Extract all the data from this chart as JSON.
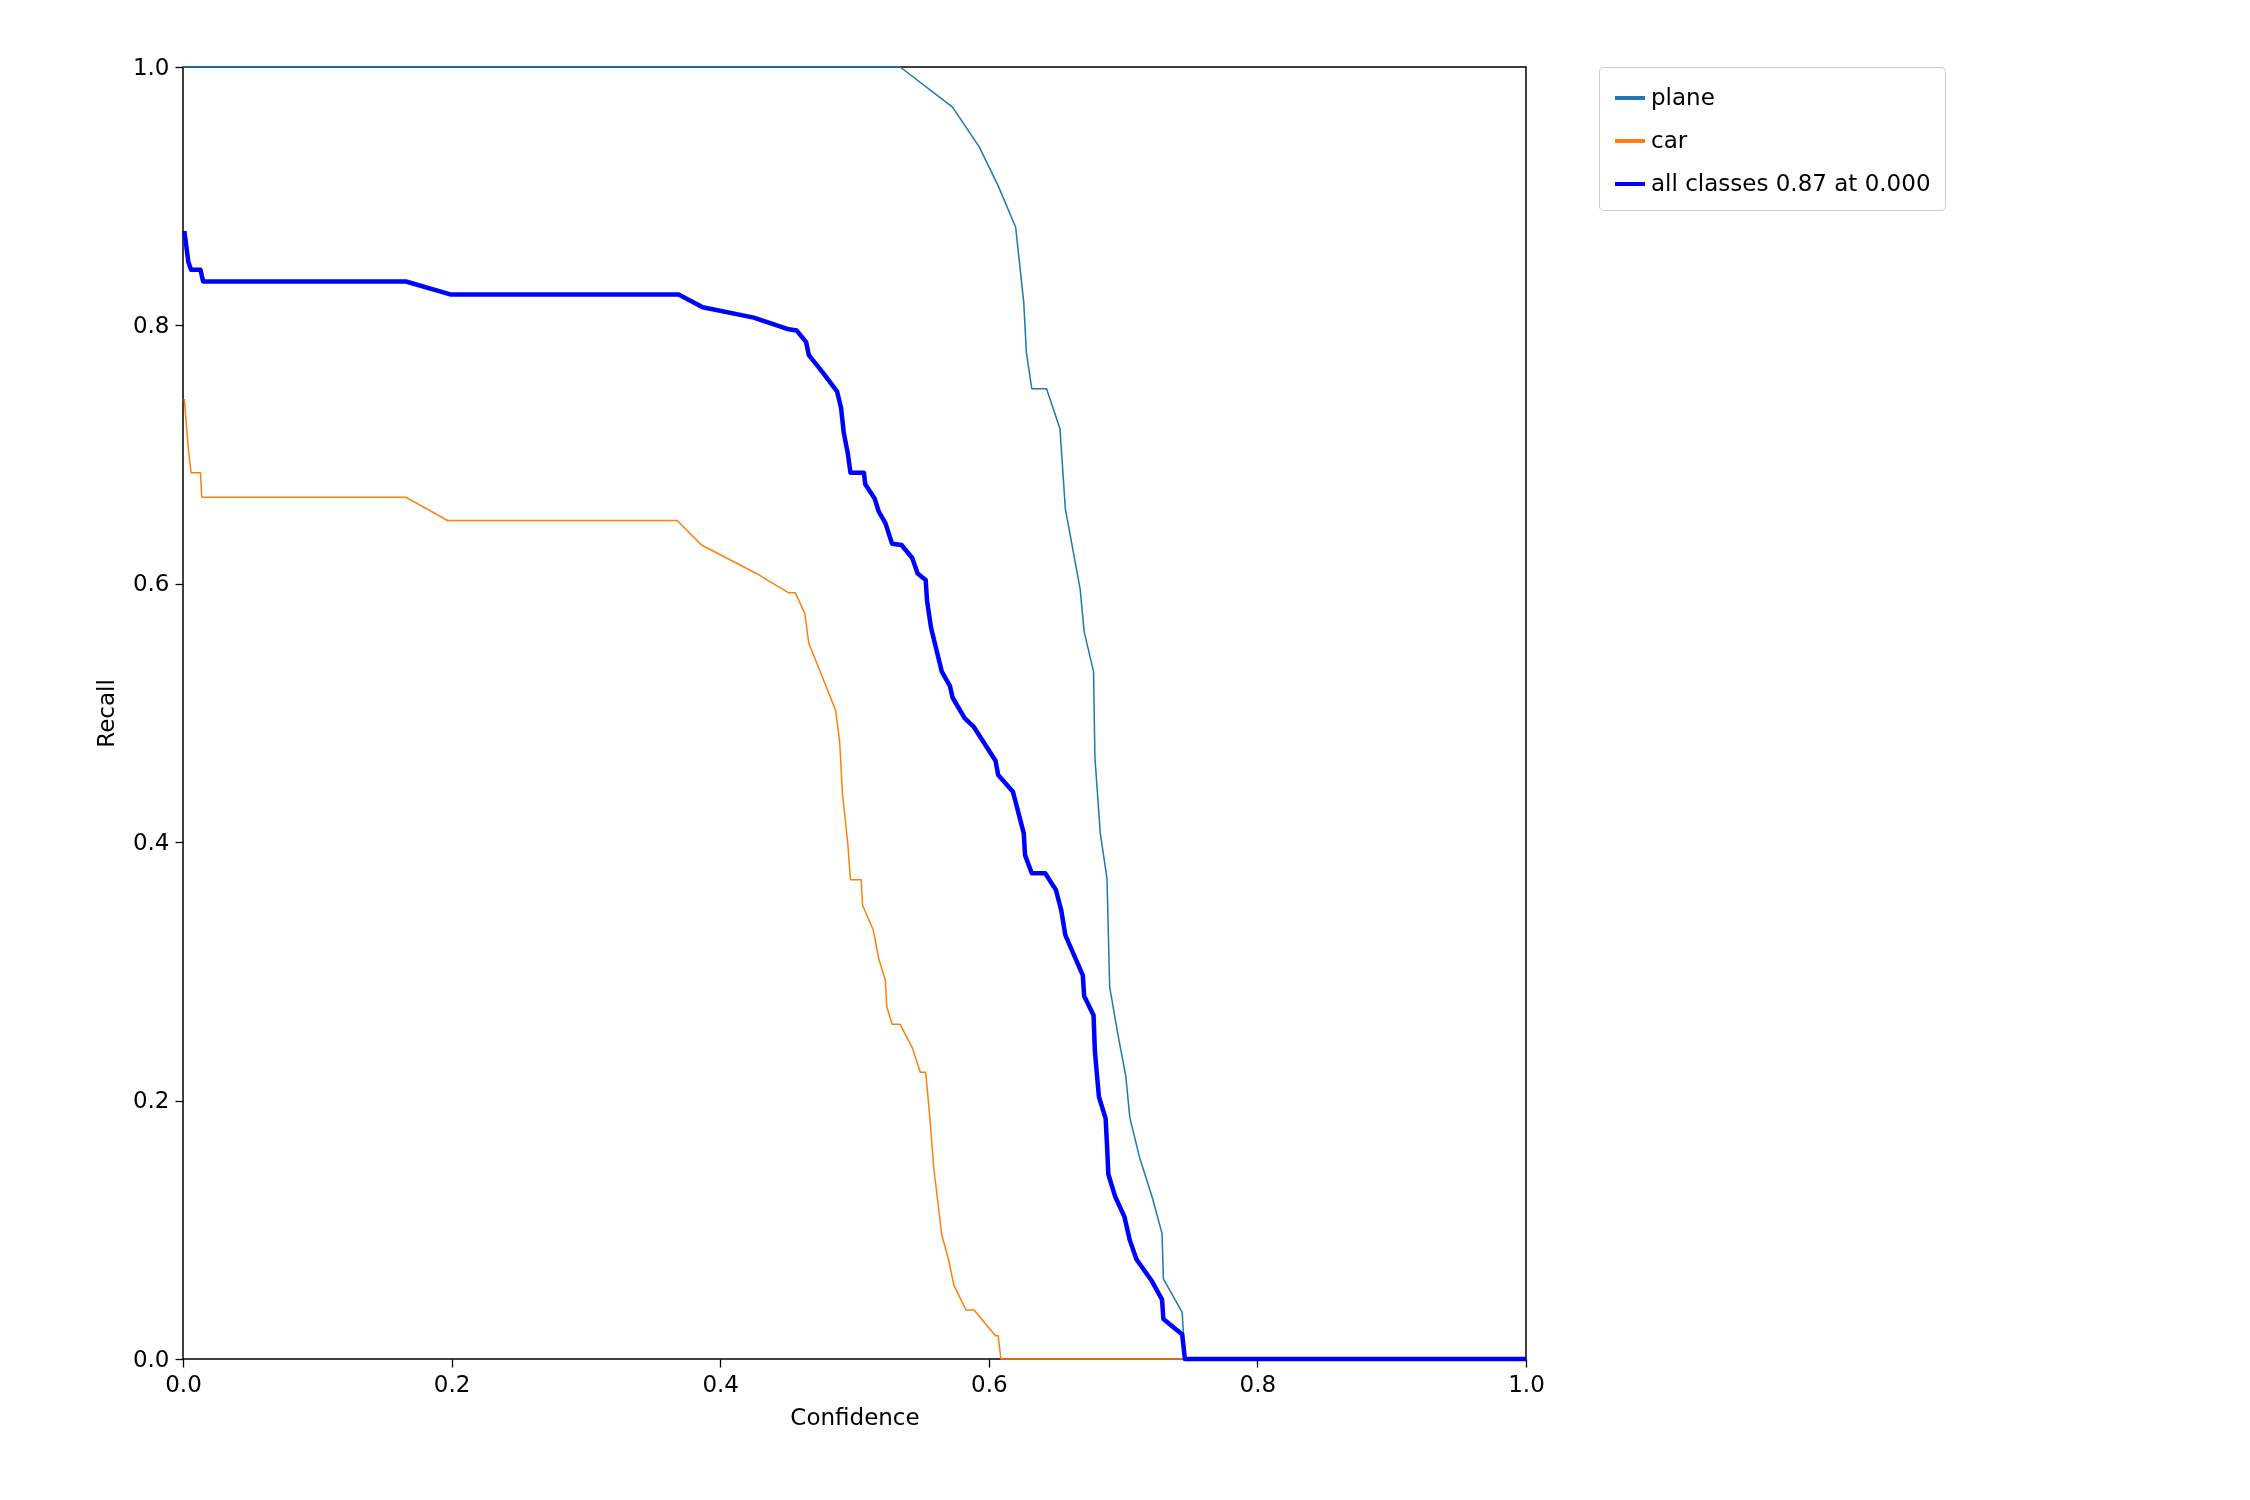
{
  "chart_data": {
    "type": "line",
    "xlabel": "Confidence",
    "ylabel": "Recall",
    "xlim": [
      0,
      1
    ],
    "ylim": [
      0,
      1
    ],
    "xticks": [
      {
        "value": 0,
        "label": "0.0"
      },
      {
        "value": 0.2,
        "label": "0.2"
      },
      {
        "value": 0.4,
        "label": "0.4"
      },
      {
        "value": 0.6,
        "label": "0.6"
      },
      {
        "value": 0.8,
        "label": "0.8"
      },
      {
        "value": 1,
        "label": "1.0"
      }
    ],
    "yticks": [
      {
        "value": 0,
        "label": "0.0"
      },
      {
        "value": 0.2,
        "label": "0.2"
      },
      {
        "value": 0.4,
        "label": "0.4"
      },
      {
        "value": 0.6,
        "label": "0.6"
      },
      {
        "value": 0.8,
        "label": "0.8"
      },
      {
        "value": 1,
        "label": "1.0"
      }
    ],
    "grid": false,
    "legend": "top right",
    "line_style": "solid",
    "marker": "none",
    "series": [
      {
        "name": "plane",
        "color": "#1f77b4",
        "x": [
          0,
          0.534,
          0.573,
          0.593,
          0.607,
          0.62,
          0.626,
          0.628,
          0.632,
          0.643,
          0.653,
          0.657,
          0.668,
          0.671,
          0.678,
          0.679,
          0.683,
          0.688,
          0.69,
          0.696,
          0.702,
          0.705,
          0.712,
          0.722,
          0.729,
          0.73,
          0.744,
          0.746,
          1
        ],
        "values": [
          1,
          1,
          0.969,
          0.938,
          0.908,
          0.876,
          0.818,
          0.779,
          0.751,
          0.751,
          0.72,
          0.658,
          0.596,
          0.563,
          0.532,
          0.466,
          0.407,
          0.372,
          0.288,
          0.252,
          0.219,
          0.187,
          0.157,
          0.124,
          0.097,
          0.062,
          0.036,
          0,
          0
        ]
      },
      {
        "name": "car",
        "color": "#ff7f0e",
        "x": [
          0.001,
          0.004,
          0.006,
          0.013,
          0.014,
          0.166,
          0.197,
          0.368,
          0.386,
          0.427,
          0.451,
          0.456,
          0.463,
          0.466,
          0.486,
          0.489,
          0.491,
          0.495,
          0.497,
          0.505,
          0.506,
          0.514,
          0.518,
          0.523,
          0.524,
          0.528,
          0.534,
          0.543,
          0.549,
          0.553,
          0.556,
          0.559,
          0.565,
          0.57,
          0.574,
          0.583,
          0.589,
          0.605,
          0.607,
          0.609,
          1
        ],
        "values": [
          0.743,
          0.704,
          0.686,
          0.686,
          0.667,
          0.667,
          0.649,
          0.649,
          0.63,
          0.608,
          0.593,
          0.593,
          0.577,
          0.554,
          0.502,
          0.477,
          0.438,
          0.399,
          0.371,
          0.371,
          0.351,
          0.332,
          0.31,
          0.293,
          0.273,
          0.259,
          0.259,
          0.241,
          0.222,
          0.222,
          0.188,
          0.148,
          0.096,
          0.077,
          0.057,
          0.038,
          0.038,
          0.018,
          0.018,
          0,
          0
        ]
      },
      {
        "name": "all classes 0.87 at 0.000",
        "color": "#0000ff",
        "x": [
          0.001,
          0.004,
          0.006,
          0.013,
          0.015,
          0.166,
          0.199,
          0.369,
          0.387,
          0.425,
          0.451,
          0.457,
          0.464,
          0.466,
          0.476,
          0.487,
          0.49,
          0.492,
          0.495,
          0.497,
          0.507,
          0.508,
          0.515,
          0.518,
          0.523,
          0.528,
          0.535,
          0.543,
          0.547,
          0.553,
          0.554,
          0.557,
          0.561,
          0.565,
          0.571,
          0.573,
          0.582,
          0.589,
          0.605,
          0.607,
          0.618,
          0.626,
          0.627,
          0.632,
          0.642,
          0.65,
          0.654,
          0.657,
          0.67,
          0.671,
          0.678,
          0.679,
          0.682,
          0.687,
          0.688,
          0.689,
          0.694,
          0.701,
          0.705,
          0.71,
          0.721,
          0.729,
          0.73,
          0.744,
          0.746,
          1
        ],
        "values": [
          0.873,
          0.849,
          0.843,
          0.843,
          0.834,
          0.834,
          0.824,
          0.824,
          0.814,
          0.806,
          0.797,
          0.796,
          0.787,
          0.777,
          0.764,
          0.749,
          0.736,
          0.717,
          0.701,
          0.686,
          0.686,
          0.677,
          0.666,
          0.656,
          0.647,
          0.631,
          0.63,
          0.62,
          0.608,
          0.603,
          0.587,
          0.566,
          0.549,
          0.532,
          0.521,
          0.512,
          0.496,
          0.489,
          0.463,
          0.452,
          0.439,
          0.407,
          0.39,
          0.376,
          0.376,
          0.363,
          0.347,
          0.328,
          0.297,
          0.281,
          0.266,
          0.238,
          0.203,
          0.186,
          0.166,
          0.143,
          0.126,
          0.11,
          0.092,
          0.077,
          0.061,
          0.046,
          0.031,
          0.019,
          0,
          0
        ]
      }
    ]
  }
}
